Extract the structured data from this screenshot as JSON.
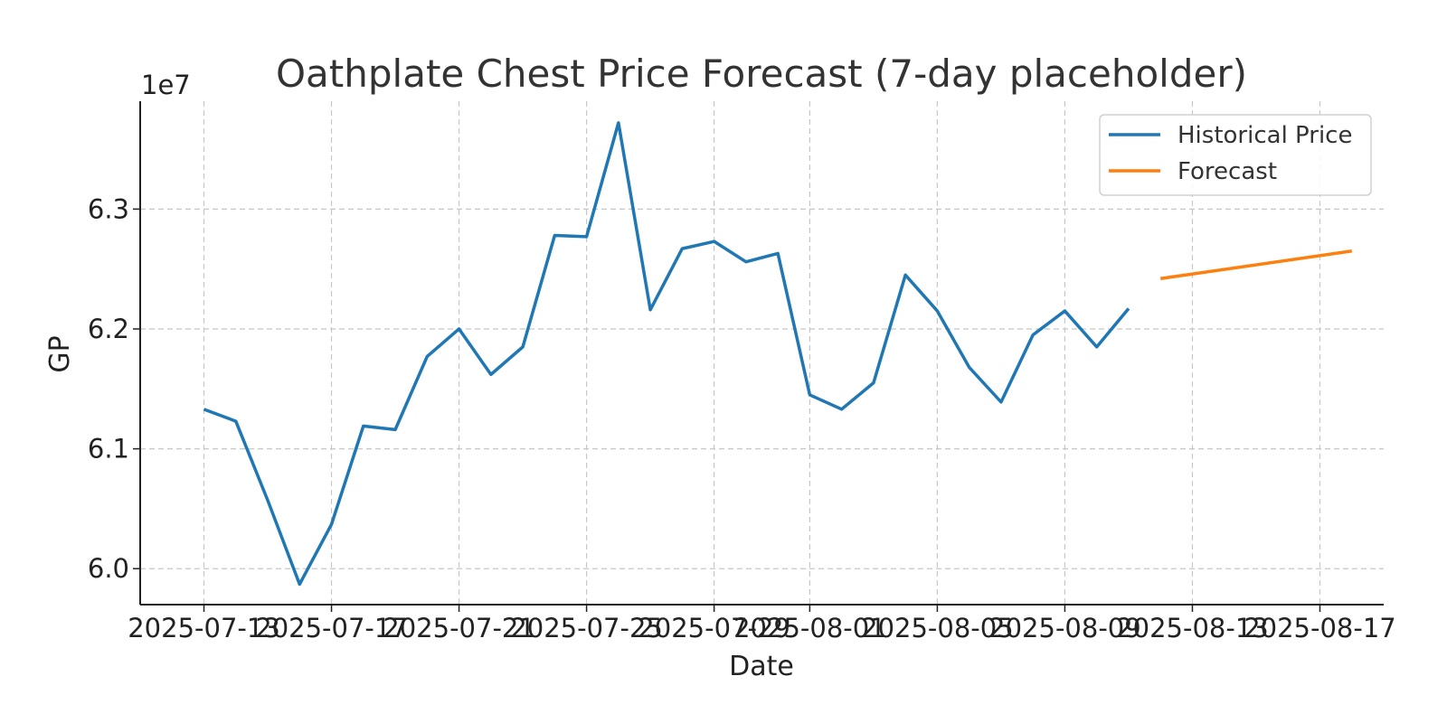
{
  "chart_data": {
    "type": "line",
    "title": "Oathplate Chest Price Forecast (7-day placeholder)",
    "xlabel": "Date",
    "ylabel": "GP",
    "y_offset_text": "1e7",
    "y_scale_factor": 10000000,
    "xlim": [
      "2025-07-11",
      "2025-08-19"
    ],
    "ylim": [
      59700000,
      63900000
    ],
    "x_ticks": [
      "2025-07-13",
      "2025-07-17",
      "2025-07-21",
      "2025-07-25",
      "2025-07-29",
      "2025-08-01",
      "2025-08-05",
      "2025-08-09",
      "2025-08-13",
      "2025-08-17"
    ],
    "y_ticks": [
      60000000,
      61000000,
      62000000,
      63000000
    ],
    "y_tick_labels": [
      "6.0",
      "6.1",
      "6.2",
      "6.3"
    ],
    "grid": true,
    "legend_position": "top-right",
    "series": [
      {
        "name": "Historical Price",
        "color": "#1f77b4",
        "points": [
          [
            "2025-07-13",
            61330000
          ],
          [
            "2025-07-14",
            61230000
          ],
          [
            "2025-07-15",
            60570000
          ],
          [
            "2025-07-16",
            59870000
          ],
          [
            "2025-07-17",
            60370000
          ],
          [
            "2025-07-18",
            61190000
          ],
          [
            "2025-07-19",
            61160000
          ],
          [
            "2025-07-20",
            61770000
          ],
          [
            "2025-07-21",
            62000000
          ],
          [
            "2025-07-22",
            61620000
          ],
          [
            "2025-07-23",
            61850000
          ],
          [
            "2025-07-24",
            62780000
          ],
          [
            "2025-07-25",
            62770000
          ],
          [
            "2025-07-26",
            63720000
          ],
          [
            "2025-07-27",
            62160000
          ],
          [
            "2025-07-28",
            62670000
          ],
          [
            "2025-07-29",
            62730000
          ],
          [
            "2025-07-30",
            62560000
          ],
          [
            "2025-07-31",
            62630000
          ],
          [
            "2025-08-01",
            61450000
          ],
          [
            "2025-08-02",
            61330000
          ],
          [
            "2025-08-03",
            61550000
          ],
          [
            "2025-08-04",
            62450000
          ],
          [
            "2025-08-05",
            62150000
          ],
          [
            "2025-08-06",
            61680000
          ],
          [
            "2025-08-07",
            61390000
          ],
          [
            "2025-08-08",
            61950000
          ],
          [
            "2025-08-09",
            62150000
          ],
          [
            "2025-08-10",
            61850000
          ],
          [
            "2025-08-11",
            62170000
          ]
        ]
      },
      {
        "name": "Forecast",
        "color": "#ff7f0e",
        "points": [
          [
            "2025-08-12",
            62420000
          ],
          [
            "2025-08-18",
            62650000
          ]
        ]
      }
    ]
  }
}
